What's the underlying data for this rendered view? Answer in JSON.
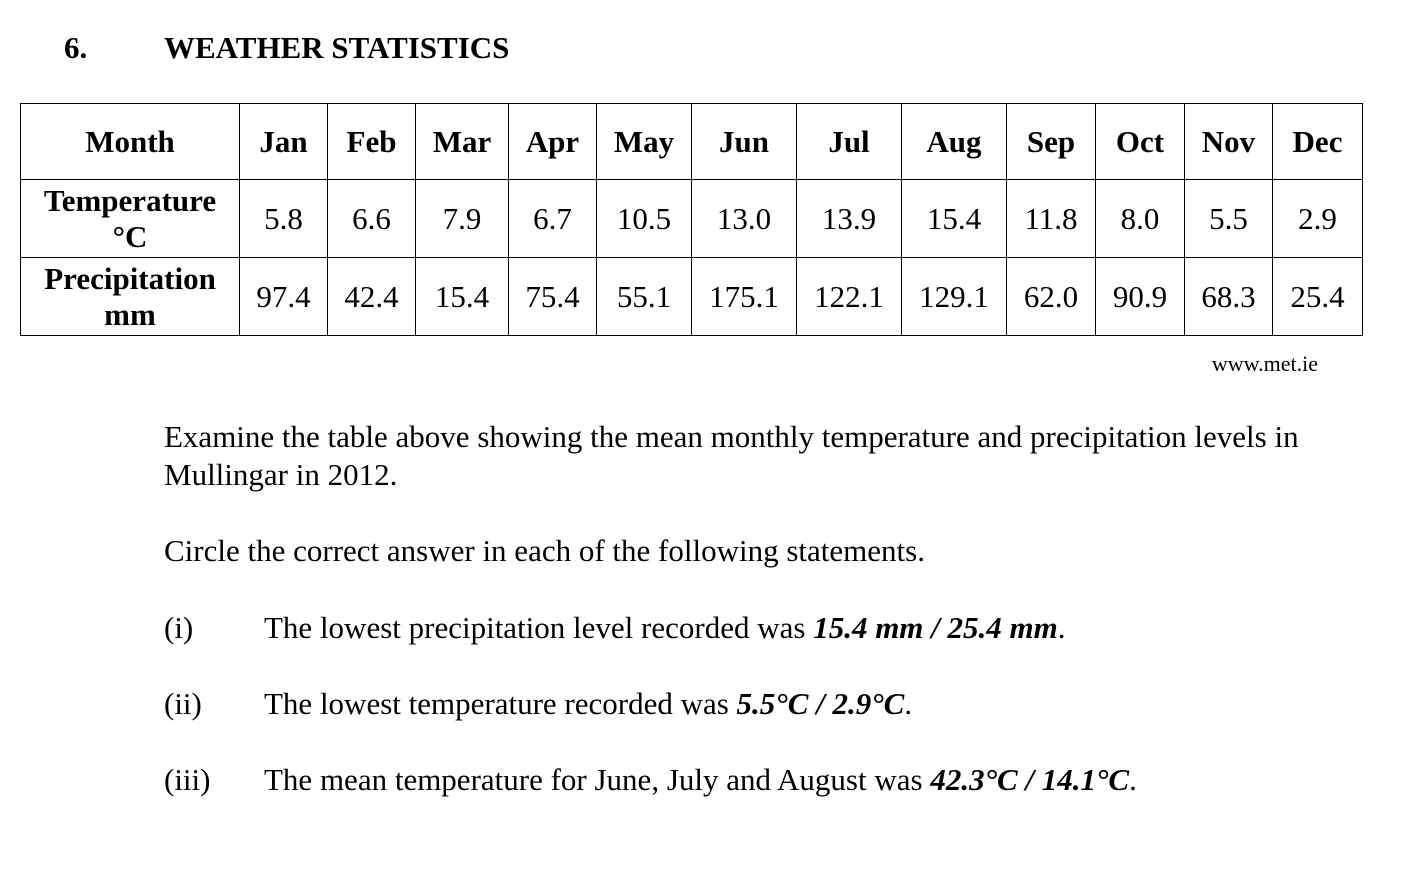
{
  "question": {
    "number": "6.",
    "title": "WEATHER STATISTICS"
  },
  "table": {
    "header_label": "Month",
    "months": [
      "Jan",
      "Feb",
      "Mar",
      "Apr",
      "May",
      "Jun",
      "Jul",
      "Aug",
      "Sep",
      "Oct",
      "Nov",
      "Dec"
    ],
    "temperature": {
      "label_line1": "Temperature",
      "label_line2": "°C",
      "values": [
        "5.8",
        "6.6",
        "7.9",
        "6.7",
        "10.5",
        "13.0",
        "13.9",
        "15.4",
        "11.8",
        "8.0",
        "5.5",
        "2.9"
      ]
    },
    "precipitation": {
      "label_line1": "Precipitation",
      "label_line2": "mm",
      "values": [
        "97.4",
        "42.4",
        "15.4",
        "75.4",
        "55.1",
        "175.1",
        "122.1",
        "129.1",
        "62.0",
        "90.9",
        "68.3",
        "25.4"
      ]
    }
  },
  "source": "www.met.ie",
  "intro": "Examine the table above showing the mean monthly temperature and precipitation levels in Mullingar in 2012.",
  "instruction": "Circle the correct answer in each of the following statements.",
  "statements": [
    {
      "roman": "(i)",
      "text": "The lowest precipitation level recorded was ",
      "options": "15.4 mm / 25.4 mm",
      "end": "."
    },
    {
      "roman": "(ii)",
      "text": "The lowest temperature recorded was ",
      "options": "5.5°C / 2.9°C",
      "end": "."
    },
    {
      "roman": "(iii)",
      "text": "The mean temperature for June, July and August was ",
      "options": "42.3°C / 14.1°C",
      "end": "."
    }
  ]
}
